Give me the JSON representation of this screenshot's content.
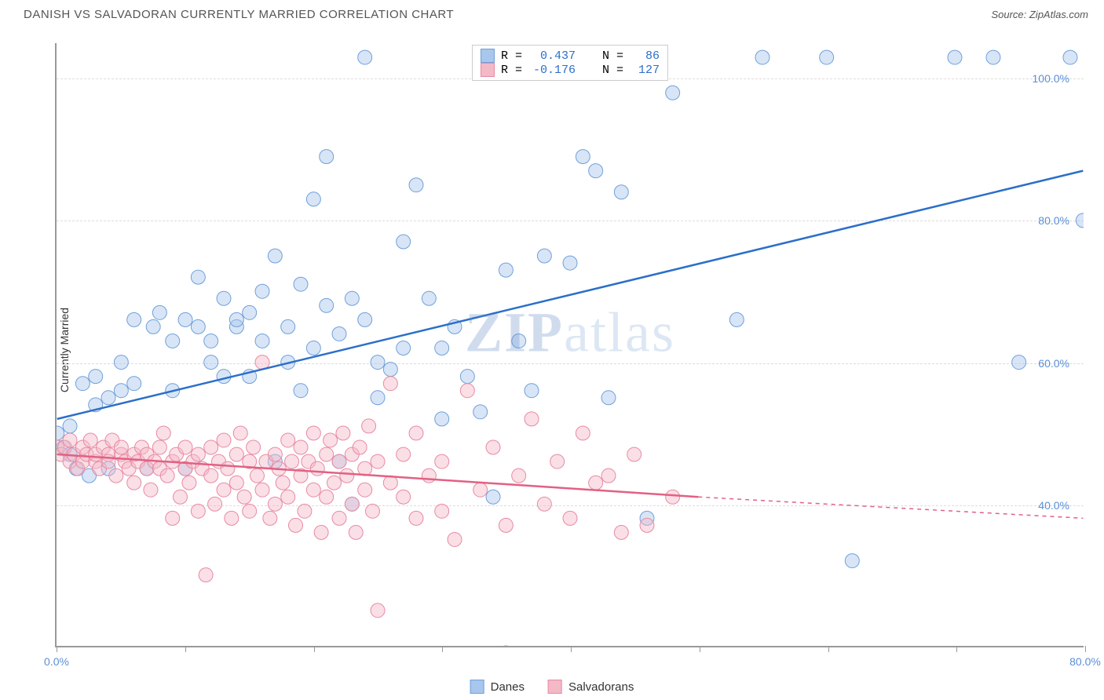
{
  "header": {
    "title": "DANISH VS SALVADORAN CURRENTLY MARRIED CORRELATION CHART",
    "source_prefix": "Source: ",
    "source": "ZipAtlas.com"
  },
  "chart": {
    "type": "scatter",
    "ylabel": "Currently Married",
    "watermark_bold": "ZIP",
    "watermark_light": "atlas",
    "background_color": "#ffffff",
    "grid_color": "#dddddd",
    "axis_color": "#999999",
    "xlim": [
      0,
      80
    ],
    "ylim": [
      20,
      105
    ],
    "xticks": [
      0,
      10,
      20,
      30,
      40,
      50,
      60,
      70,
      80
    ],
    "xtick_labels": {
      "0": "0.0%",
      "80": "80.0%"
    },
    "yticks": [
      40,
      60,
      80,
      100
    ],
    "ytick_labels": [
      "40.0%",
      "60.0%",
      "80.0%",
      "100.0%"
    ],
    "marker_radius": 9,
    "marker_opacity": 0.45,
    "series": [
      {
        "name": "Danes",
        "color_fill": "#a9c6ec",
        "color_stroke": "#6fa0db",
        "line_color": "#2b6fc9",
        "R": "0.437",
        "N": "86",
        "trend": {
          "x1": 0,
          "y1": 52,
          "x2": 80,
          "y2": 87,
          "dash": false
        },
        "points": [
          [
            0,
            50
          ],
          [
            0.5,
            48
          ],
          [
            1,
            47
          ],
          [
            1,
            51
          ],
          [
            1.5,
            45
          ],
          [
            2,
            57
          ],
          [
            2.5,
            44
          ],
          [
            3,
            54
          ],
          [
            3,
            58
          ],
          [
            4,
            55
          ],
          [
            4,
            45
          ],
          [
            5,
            56
          ],
          [
            5,
            60
          ],
          [
            6,
            57
          ],
          [
            6,
            66
          ],
          [
            7,
            45
          ],
          [
            7.5,
            65
          ],
          [
            8,
            67
          ],
          [
            9,
            56
          ],
          [
            9,
            63
          ],
          [
            10,
            66
          ],
          [
            10,
            45
          ],
          [
            11,
            65
          ],
          [
            11,
            72
          ],
          [
            12,
            63
          ],
          [
            12,
            60
          ],
          [
            13,
            58
          ],
          [
            13,
            69
          ],
          [
            14,
            65
          ],
          [
            14,
            66
          ],
          [
            15,
            67
          ],
          [
            15,
            58
          ],
          [
            16,
            70
          ],
          [
            16,
            63
          ],
          [
            17,
            46
          ],
          [
            17,
            75
          ],
          [
            18,
            60
          ],
          [
            18,
            65
          ],
          [
            19,
            71
          ],
          [
            19,
            56
          ],
          [
            20,
            62
          ],
          [
            20,
            83
          ],
          [
            21,
            89
          ],
          [
            21,
            68
          ],
          [
            22,
            64
          ],
          [
            22,
            46
          ],
          [
            23,
            69
          ],
          [
            23,
            40
          ],
          [
            24,
            66
          ],
          [
            24,
            103
          ],
          [
            25,
            55
          ],
          [
            25,
            60
          ],
          [
            26,
            59
          ],
          [
            27,
            77
          ],
          [
            27,
            62
          ],
          [
            28,
            85
          ],
          [
            29,
            69
          ],
          [
            30,
            62
          ],
          [
            30,
            52
          ],
          [
            31,
            65
          ],
          [
            32,
            58
          ],
          [
            33,
            53
          ],
          [
            34,
            41
          ],
          [
            35,
            73
          ],
          [
            35,
            19
          ],
          [
            36,
            63
          ],
          [
            37,
            56
          ],
          [
            38,
            75
          ],
          [
            38,
            103
          ],
          [
            40,
            74
          ],
          [
            41,
            89
          ],
          [
            42,
            87
          ],
          [
            43,
            55
          ],
          [
            44,
            84
          ],
          [
            45,
            103
          ],
          [
            46,
            38
          ],
          [
            48,
            98
          ],
          [
            53,
            66
          ],
          [
            55,
            103
          ],
          [
            60,
            103
          ],
          [
            62,
            32
          ],
          [
            70,
            103
          ],
          [
            73,
            103
          ],
          [
            75,
            60
          ],
          [
            79,
            103
          ],
          [
            80,
            80
          ]
        ]
      },
      {
        "name": "Salvadorans",
        "color_fill": "#f3b9c7",
        "color_stroke": "#e88aa2",
        "line_color": "#e26183",
        "R": "-0.176",
        "N": "127",
        "trend": {
          "x1": 0,
          "y1": 47,
          "x2": 50,
          "y2": 41,
          "dash_x2": 80,
          "dash_y2": 38
        },
        "points": [
          [
            0,
            48
          ],
          [
            0.3,
            47
          ],
          [
            0.6,
            48
          ],
          [
            1,
            46
          ],
          [
            1,
            49
          ],
          [
            1.3,
            47
          ],
          [
            1.6,
            45
          ],
          [
            2,
            46
          ],
          [
            2,
            48
          ],
          [
            2.3,
            47
          ],
          [
            2.6,
            49
          ],
          [
            3,
            46
          ],
          [
            3,
            47
          ],
          [
            3.3,
            45
          ],
          [
            3.6,
            48
          ],
          [
            4,
            47
          ],
          [
            4,
            46
          ],
          [
            4.3,
            49
          ],
          [
            4.6,
            44
          ],
          [
            5,
            47
          ],
          [
            5,
            48
          ],
          [
            5.3,
            46
          ],
          [
            5.6,
            45
          ],
          [
            6,
            47
          ],
          [
            6,
            43
          ],
          [
            6.3,
            46
          ],
          [
            6.6,
            48
          ],
          [
            7,
            45
          ],
          [
            7,
            47
          ],
          [
            7.3,
            42
          ],
          [
            7.6,
            46
          ],
          [
            8,
            45
          ],
          [
            8,
            48
          ],
          [
            8.3,
            50
          ],
          [
            8.6,
            44
          ],
          [
            9,
            46
          ],
          [
            9,
            38
          ],
          [
            9.3,
            47
          ],
          [
            9.6,
            41
          ],
          [
            10,
            45
          ],
          [
            10,
            48
          ],
          [
            10.3,
            43
          ],
          [
            10.6,
            46
          ],
          [
            11,
            39
          ],
          [
            11,
            47
          ],
          [
            11.3,
            45
          ],
          [
            11.6,
            30
          ],
          [
            12,
            48
          ],
          [
            12,
            44
          ],
          [
            12.3,
            40
          ],
          [
            12.6,
            46
          ],
          [
            13,
            42
          ],
          [
            13,
            49
          ],
          [
            13.3,
            45
          ],
          [
            13.6,
            38
          ],
          [
            14,
            47
          ],
          [
            14,
            43
          ],
          [
            14.3,
            50
          ],
          [
            14.6,
            41
          ],
          [
            15,
            46
          ],
          [
            15,
            39
          ],
          [
            15.3,
            48
          ],
          [
            15.6,
            44
          ],
          [
            16,
            60
          ],
          [
            16,
            42
          ],
          [
            16.3,
            46
          ],
          [
            16.6,
            38
          ],
          [
            17,
            47
          ],
          [
            17,
            40
          ],
          [
            17.3,
            45
          ],
          [
            17.6,
            43
          ],
          [
            18,
            49
          ],
          [
            18,
            41
          ],
          [
            18.3,
            46
          ],
          [
            18.6,
            37
          ],
          [
            19,
            48
          ],
          [
            19,
            44
          ],
          [
            19.3,
            39
          ],
          [
            19.6,
            46
          ],
          [
            20,
            42
          ],
          [
            20,
            50
          ],
          [
            20.3,
            45
          ],
          [
            20.6,
            36
          ],
          [
            21,
            47
          ],
          [
            21,
            41
          ],
          [
            21.3,
            49
          ],
          [
            21.6,
            43
          ],
          [
            22,
            46
          ],
          [
            22,
            38
          ],
          [
            22.3,
            50
          ],
          [
            22.6,
            44
          ],
          [
            23,
            40
          ],
          [
            23,
            47
          ],
          [
            23.3,
            36
          ],
          [
            23.6,
            48
          ],
          [
            24,
            42
          ],
          [
            24,
            45
          ],
          [
            24.3,
            51
          ],
          [
            24.6,
            39
          ],
          [
            25,
            46
          ],
          [
            25,
            25
          ],
          [
            26,
            43
          ],
          [
            26,
            57
          ],
          [
            27,
            41
          ],
          [
            27,
            47
          ],
          [
            28,
            38
          ],
          [
            28,
            50
          ],
          [
            29,
            44
          ],
          [
            30,
            46
          ],
          [
            30,
            39
          ],
          [
            31,
            35
          ],
          [
            32,
            56
          ],
          [
            33,
            42
          ],
          [
            34,
            48
          ],
          [
            35,
            37
          ],
          [
            36,
            44
          ],
          [
            37,
            52
          ],
          [
            38,
            40
          ],
          [
            39,
            46
          ],
          [
            40,
            38
          ],
          [
            41,
            50
          ],
          [
            42,
            43
          ],
          [
            43,
            44
          ],
          [
            44,
            36
          ],
          [
            45,
            47
          ],
          [
            46,
            37
          ],
          [
            48,
            41
          ]
        ]
      }
    ],
    "legend_top_labels": {
      "R": "R =",
      "N": "N ="
    },
    "legend_bottom": [
      "Danes",
      "Salvadorans"
    ]
  }
}
